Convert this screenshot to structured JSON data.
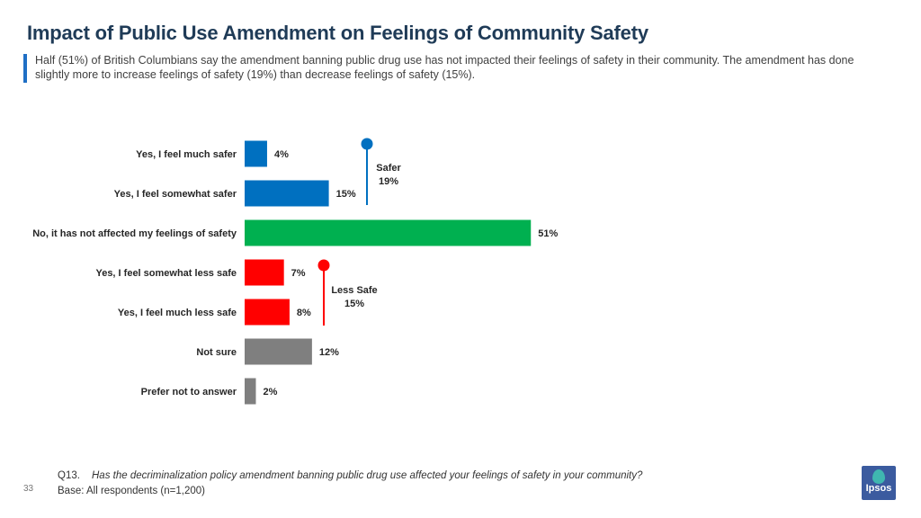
{
  "header": {
    "title": "Impact of Public Use Amendment on Feelings of Community Safety",
    "subtitle": "Half (51%) of British Columbians say the amendment banning public drug use has not impacted their feelings of safety in their community. The amendment has done slightly more to increase feelings of safety (19%) than decrease feelings of safety (15%)."
  },
  "chart_data": {
    "type": "bar",
    "orientation": "horizontal",
    "title": "",
    "xlabel": "",
    "ylabel": "",
    "xlim": [
      0,
      60
    ],
    "grid": false,
    "categories": [
      "Yes, I feel much safer",
      "Yes, I feel somewhat safer",
      "No, it has not affected my feelings of safety",
      "Yes, I feel somewhat less safe",
      "Yes, I feel much less safe",
      "Not sure",
      "Prefer not to answer"
    ],
    "values": [
      4,
      15,
      51,
      7,
      8,
      12,
      2
    ],
    "value_labels": [
      "4%",
      "15%",
      "51%",
      "7%",
      "8%",
      "12%",
      "2%"
    ],
    "colors": [
      "#0070c0",
      "#0070c0",
      "#00b050",
      "#ff0000",
      "#ff0000",
      "#7f7f7f",
      "#7f7f7f"
    ],
    "annotations": [
      {
        "label": "Safer",
        "value": "19%",
        "color": "#0070c0",
        "spans": [
          0,
          1
        ]
      },
      {
        "label": "Less Safe",
        "value": "15%",
        "color": "#ff0000",
        "spans": [
          3,
          4
        ]
      }
    ]
  },
  "footer": {
    "question_number": "Q13.",
    "question_text": "Has the decriminalization policy amendment banning public drug use affected your feelings of safety in your community?",
    "base": "Base: All respondents (n=1,200)",
    "page_number": "33",
    "logo_text": "Ipsos"
  }
}
